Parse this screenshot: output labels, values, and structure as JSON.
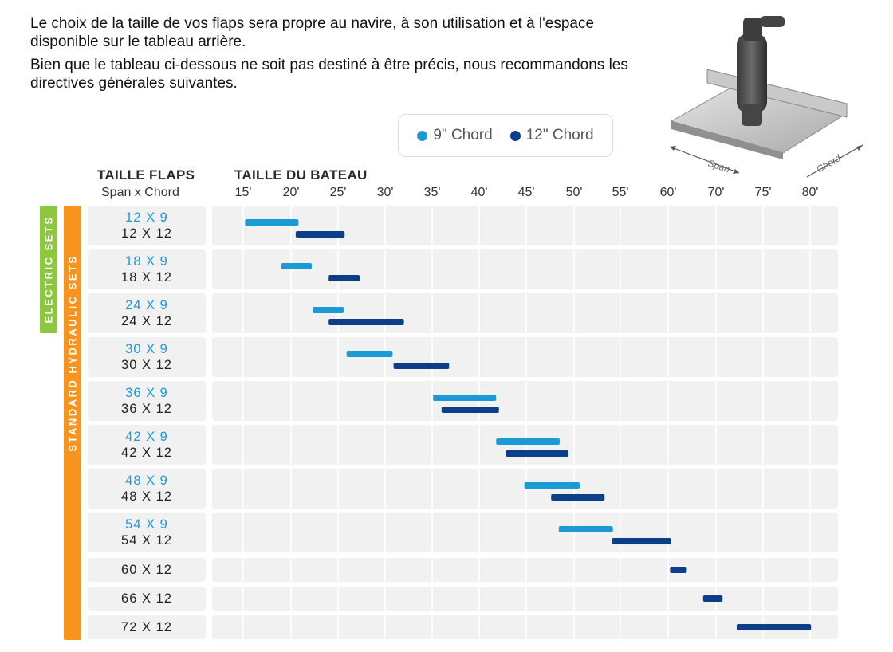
{
  "intro": {
    "line1": "Le choix de la taille de vos flaps sera propre au navire, à son utilisation et à l'espace disponible sur le tableau arrière.",
    "line2": "Bien que le tableau ci-dessous ne soit pas destiné à être précis, nous recommandons les directives générales suivantes."
  },
  "legend": {
    "items": [
      {
        "label": "9\" Chord",
        "color": "#1c9ad6"
      },
      {
        "label": "12\" Chord",
        "color": "#0d3f88"
      }
    ]
  },
  "headers": {
    "flaps_title": "TAILLE FLAPS",
    "flaps_sub": "Span x Chord",
    "boat_title": "TAILLE DU BATEAU"
  },
  "sidebars": {
    "electric": {
      "label": "ELECTRIC SETS",
      "color": "#8dc63f"
    },
    "hydraulic": {
      "label": "STANDARD HYDRAULIC SETS",
      "color": "#f7941d"
    }
  },
  "product_image": {
    "span_label": "Span",
    "chord_label": "Chord"
  },
  "chart_data": {
    "type": "bar",
    "orientation": "horizontal-range",
    "x_axis_label": "TAILLE DU BATEAU",
    "x_ticks": [
      "15'",
      "20'",
      "25'",
      "30'",
      "35'",
      "40'",
      "45'",
      "50'",
      "55'",
      "60'",
      "70'",
      "75'",
      "80'"
    ],
    "x_tick_values": [
      15,
      20,
      25,
      30,
      35,
      40,
      45,
      50,
      55,
      60,
      70,
      75,
      80
    ],
    "rows": [
      {
        "label9": "12 X 9",
        "label12": "12 X 12",
        "r9": [
          15.2,
          20.8
        ],
        "r12": [
          20.5,
          25.7
        ]
      },
      {
        "label9": "18 X 9",
        "label12": "18 X 12",
        "r9": [
          19,
          22.2
        ],
        "r12": [
          24,
          27.3
        ]
      },
      {
        "label9": "24 X 9",
        "label12": "24 X 12",
        "r9": [
          22.3,
          25.6
        ],
        "r12": [
          24,
          32
        ]
      },
      {
        "label9": "30 X 9",
        "label12": "30 X 12",
        "r9": [
          25.9,
          30.8
        ],
        "r12": [
          30.9,
          36.8
        ]
      },
      {
        "label9": "36 X 9",
        "label12": "36 X 12",
        "r9": [
          35.1,
          41.8
        ],
        "r12": [
          36,
          42.1
        ]
      },
      {
        "label9": "42 X 9",
        "label12": "42 X 12",
        "r9": [
          41.8,
          48.5
        ],
        "r12": [
          42.8,
          49.4
        ]
      },
      {
        "label9": "48 X 9",
        "label12": "48 X 12",
        "r9": [
          44.8,
          50.6
        ],
        "r12": [
          47.6,
          53.3
        ]
      },
      {
        "label9": "54 X 9",
        "label12": "54 X 12",
        "r9": [
          48.4,
          54.2
        ],
        "r12": [
          54.1,
          60.6
        ]
      },
      {
        "label9": "",
        "label12": "60 X 12",
        "r9": null,
        "r12": [
          60.4,
          63.9
        ]
      },
      {
        "label9": "",
        "label12": "66 X 12",
        "r9": null,
        "r12": [
          67.3,
          70.7
        ]
      },
      {
        "label9": "",
        "label12": "72 X 12",
        "r9": null,
        "r12": [
          72.2,
          80.1
        ]
      }
    ],
    "series": [
      {
        "name": "9\" Chord",
        "color": "#1c9ad6"
      },
      {
        "name": "12\" Chord",
        "color": "#0d3f88"
      }
    ],
    "grid": true
  }
}
